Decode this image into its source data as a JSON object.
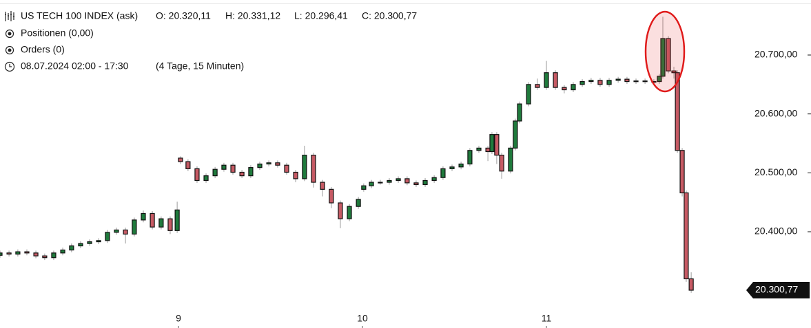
{
  "chart_data": {
    "type": "candlestick",
    "title": "US TECH 100 INDEX (ask)",
    "ohlc_labels": [
      "O: 20.320,11",
      "H: 20.331,12",
      "L: 20.296,41",
      "C: 20.300,77"
    ],
    "info_lines": [
      "Positionen (0,00)",
      "Orders (0)",
      "08.07.2024 02:00 - 17:30",
      "(4 Tage, 15 Minuten)"
    ],
    "up_color": "#1f7a3c",
    "down_color": "#c65a64",
    "wick_color": "#9a9a9a",
    "xlim": [
      8.03,
      12.0
    ],
    "xticks": [
      9,
      10,
      11
    ],
    "ylim": [
      20236.6,
      20793.4
    ],
    "yticks": [
      {
        "value": 20400,
        "label": "20.400,00"
      },
      {
        "value": 20500,
        "label": "20.500,00"
      },
      {
        "value": 20600,
        "label": "20.600,00"
      },
      {
        "value": 20700,
        "label": "20.700,00"
      }
    ],
    "last_price": {
      "value": 20300.77,
      "label": "20.300,77"
    },
    "x": [
      8.03,
      8.079,
      8.127,
      8.176,
      8.225,
      8.273,
      8.322,
      8.371,
      8.419,
      8.468,
      8.517,
      8.566,
      8.614,
      8.663,
      8.712,
      8.76,
      8.809,
      8.858,
      8.906,
      8.955,
      8.993,
      9.011,
      9.052,
      9.101,
      9.15,
      9.199,
      9.247,
      9.296,
      9.345,
      9.393,
      9.442,
      9.491,
      9.539,
      9.588,
      9.637,
      9.685,
      9.734,
      9.783,
      9.831,
      9.88,
      9.929,
      9.978,
      10.007,
      10.049,
      10.097,
      10.146,
      10.195,
      10.243,
      10.292,
      10.341,
      10.39,
      10.438,
      10.487,
      10.536,
      10.584,
      10.633,
      10.682,
      10.704,
      10.73,
      10.757,
      10.805,
      10.831,
      10.854,
      10.903,
      10.951,
      11.0,
      11.049,
      11.097,
      11.146,
      11.195,
      11.243,
      11.292,
      11.341,
      11.39,
      11.438,
      11.487,
      11.536,
      11.584,
      11.614,
      11.633,
      11.663,
      11.693,
      11.712,
      11.738,
      11.76,
      11.787
    ],
    "open": [
      20360,
      20364,
      20362,
      20366,
      20364,
      20359,
      20356,
      20364,
      20369,
      20376,
      20380,
      20383,
      20385,
      20399,
      20403,
      20396,
      20420,
      20431,
      20408,
      20422,
      20402,
      20525,
      20519,
      20507,
      20487,
      20495,
      20506,
      20513,
      20501,
      20495,
      20509,
      20515,
      20517,
      20513,
      20501,
      20490,
      20530,
      20484,
      20472,
      20449,
      20422,
      20443,
      20472,
      20478,
      20484,
      20484,
      20487,
      20490,
      20483,
      20480,
      20487,
      20492,
      20507,
      20510,
      20515,
      20538,
      20542,
      20536,
      20565,
      20530,
      20503,
      20542,
      20588,
      20617,
      20650,
      20645,
      20670,
      20645,
      20641,
      20650,
      20655,
      20657,
      20650,
      20657,
      20659,
      20655,
      20656,
      20655,
      20655,
      20664,
      20728,
      20673,
      20670,
      20538,
      20466,
      20320.11
    ],
    "high": [
      20368,
      20368,
      20370,
      20370,
      20368,
      20363,
      20368,
      20373,
      20380,
      20384,
      20387,
      20389,
      20403,
      20407,
      20407,
      20424,
      20436,
      20435,
      20426,
      20426,
      20451,
      20528,
      20523,
      20511,
      20499,
      20510,
      20517,
      20517,
      20505,
      20513,
      20519,
      20521,
      20521,
      20517,
      20505,
      20546,
      20534,
      20488,
      20476,
      20453,
      20447,
      20459,
      20482,
      20488,
      20488,
      20491,
      20494,
      20494,
      20487,
      20491,
      20496,
      20511,
      20514,
      20519,
      20542,
      20546,
      20546,
      20569,
      20569,
      20534,
      20546,
      20592,
      20621,
      20654,
      20660,
      20690,
      20674,
      20649,
      20654,
      20659,
      20661,
      20661,
      20661,
      20663,
      20663,
      20660,
      20660,
      20659,
      20668,
      20765,
      20732,
      20680,
      20674,
      20542,
      20470,
      20331.12
    ],
    "low": [
      20356,
      20358,
      20358,
      20360,
      20355,
      20352,
      20352,
      20360,
      20365,
      20372,
      20376,
      20379,
      20381,
      20395,
      20380,
      20392,
      20416,
      20404,
      20404,
      20396,
      20398,
      20515,
      20503,
      20483,
      20483,
      20491,
      20502,
      20497,
      20491,
      20491,
      20505,
      20511,
      20509,
      20497,
      20484,
      20486,
      20475,
      20460,
      20440,
      20406,
      20418,
      20439,
      20468,
      20474,
      20480,
      20480,
      20483,
      20479,
      20476,
      20476,
      20483,
      20488,
      20503,
      20506,
      20511,
      20534,
      20520,
      20532,
      20515,
      20490,
      20499,
      20538,
      20584,
      20613,
      20641,
      20641,
      20641,
      20635,
      20637,
      20646,
      20651,
      20646,
      20646,
      20653,
      20651,
      20651,
      20651,
      20651,
      20651,
      20660,
      20669,
      20660,
      20534,
      20460,
      20315,
      20296.41
    ],
    "close": [
      20364,
      20362,
      20366,
      20364,
      20359,
      20356,
      20364,
      20369,
      20376,
      20380,
      20383,
      20385,
      20399,
      20403,
      20396,
      20420,
      20431,
      20408,
      20422,
      20402,
      20437,
      20519,
      20507,
      20487,
      20495,
      20506,
      20513,
      20501,
      20495,
      20509,
      20515,
      20517,
      20513,
      20501,
      20490,
      20530,
      20484,
      20472,
      20449,
      20422,
      20443,
      20455,
      20478,
      20484,
      20484,
      20487,
      20490,
      20483,
      20480,
      20487,
      20492,
      20507,
      20510,
      20515,
      20538,
      20542,
      20536,
      20565,
      20530,
      20503,
      20542,
      20588,
      20617,
      20650,
      20645,
      20670,
      20645,
      20641,
      20650,
      20655,
      20657,
      20650,
      20657,
      20659,
      20655,
      20656,
      20655,
      20655,
      20664,
      20728,
      20673,
      20670,
      20538,
      20466,
      20320.11,
      20300.77
    ]
  }
}
